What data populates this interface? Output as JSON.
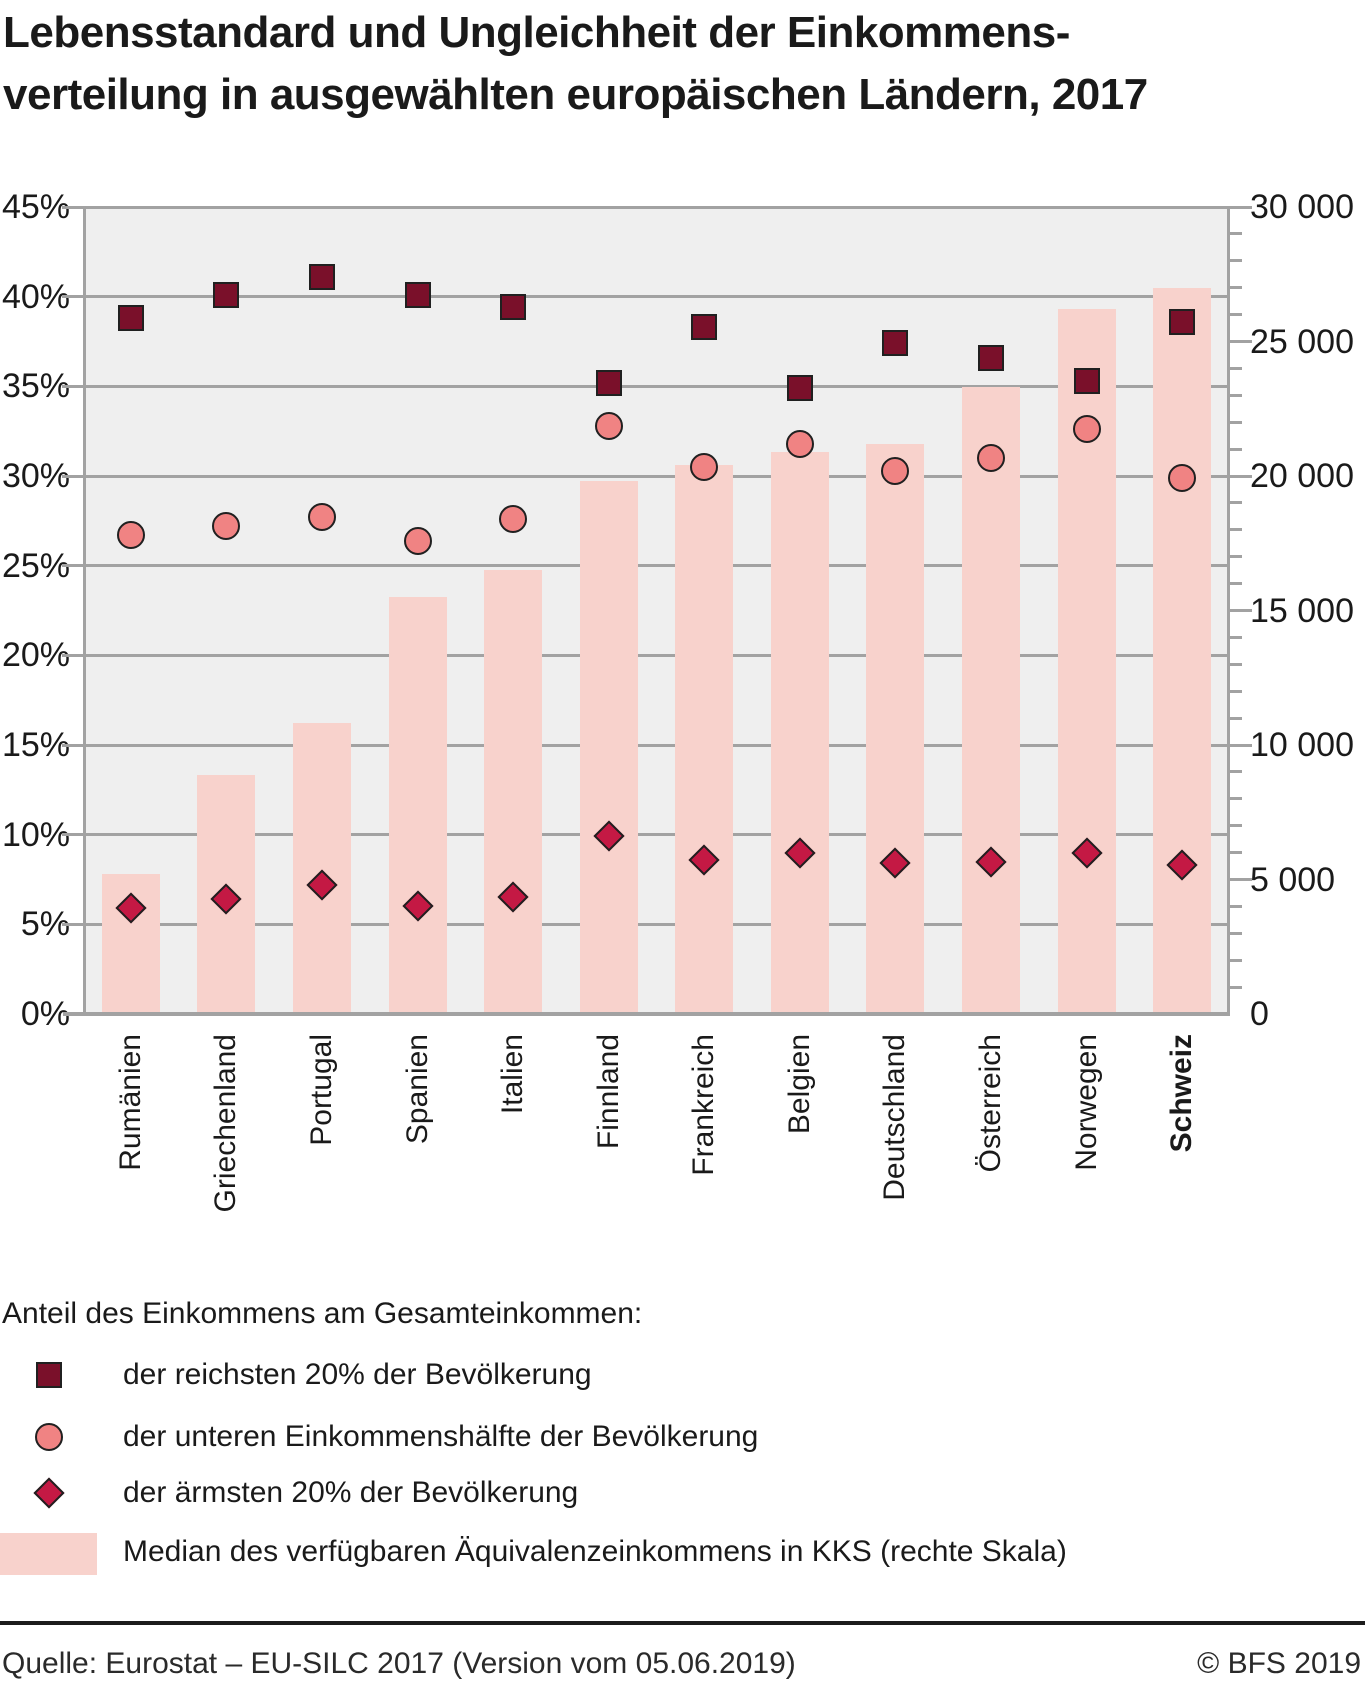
{
  "title": {
    "line1": "Lebensstandard und Ungleichheit der Einkommens-",
    "line2": "verteilung in ausgewählten europäischen Ländern, 2017"
  },
  "chart_data": {
    "type": "combo-bar-scatter",
    "categories": [
      "Rumänien",
      "Griechenland",
      "Portugal",
      "Spanien",
      "Italien",
      "Finnland",
      "Frankreich",
      "Belgien",
      "Deutschland",
      "Österreich",
      "Norwegen",
      "Schweiz"
    ],
    "emphasized_category": "Schweiz",
    "left_axis": {
      "unit": "%",
      "min": 0,
      "max": 45,
      "step": 5,
      "tick_labels": [
        "0%",
        "5%",
        "10%",
        "15%",
        "20%",
        "25%",
        "30%",
        "35%",
        "40%",
        "45%"
      ]
    },
    "right_axis": {
      "unit": "KKS",
      "min": 0,
      "max": 30000,
      "step": 5000,
      "minor_step": 1000,
      "tick_labels": [
        "0",
        "5 000",
        "10 000",
        "15 000",
        "20 000",
        "25 000",
        "30 000"
      ]
    },
    "grid": true,
    "legend_position": "bottom",
    "series": [
      {
        "id": "richest20",
        "name": "der reichsten 20% der Bevölkerung",
        "marker": "square",
        "axis": "left",
        "unit": "%",
        "values": [
          38.8,
          40.1,
          41.1,
          40.1,
          39.4,
          35.2,
          38.3,
          34.9,
          37.4,
          36.6,
          35.3,
          38.6
        ]
      },
      {
        "id": "lower_half",
        "name": "der unteren Einkommenshälfte der Bevölkerung",
        "marker": "circle",
        "axis": "left",
        "unit": "%",
        "values": [
          26.7,
          27.2,
          27.7,
          26.4,
          27.6,
          32.8,
          30.5,
          31.8,
          30.3,
          31.0,
          32.6,
          29.9
        ]
      },
      {
        "id": "poorest20",
        "name": "der ärmsten 20% der Bevölkerung",
        "marker": "diamond",
        "axis": "left",
        "unit": "%",
        "values": [
          5.9,
          6.4,
          7.2,
          6.0,
          6.5,
          9.9,
          8.6,
          9.0,
          8.4,
          8.5,
          9.0,
          8.3
        ]
      },
      {
        "id": "median_kks",
        "name": "Median des verfügbaren Äquivalenzeinkommens in KKS (rechte Skala)",
        "marker": "bar",
        "axis": "right",
        "unit": "KKS",
        "values": [
          5200,
          8900,
          10800,
          15500,
          16500,
          19800,
          20400,
          20900,
          21200,
          23300,
          26200,
          27000
        ]
      }
    ]
  },
  "legend": {
    "heading": "Anteil des Einkommens am Gesamteinkommen:",
    "items": [
      {
        "marker": "square",
        "label": "der reichsten 20% der Bevölkerung"
      },
      {
        "marker": "circle",
        "label": "der unteren Einkommenshälfte der Bevölkerung"
      },
      {
        "marker": "diamond",
        "label": "der ärmsten 20% der Bevölkerung"
      },
      {
        "marker": "bar",
        "label": "Median des verfügbaren Äquivalenzeinkommens in KKS (rechte Skala)"
      }
    ]
  },
  "footer": {
    "source": "Quelle: Eurostat – EU-SILC 2017 (Version vom 05.06.2019)",
    "copyright": "© BFS 2019"
  },
  "colors": {
    "bar": "#f8d2cc",
    "richest_square": "#7a102a",
    "lower_half_circle": "#f08383",
    "poorest_diamond": "#c41944",
    "plot_background": "#efefef",
    "grid": "#a2a2a2",
    "marker_stroke": "#202020",
    "text": "#1a1a1a"
  }
}
